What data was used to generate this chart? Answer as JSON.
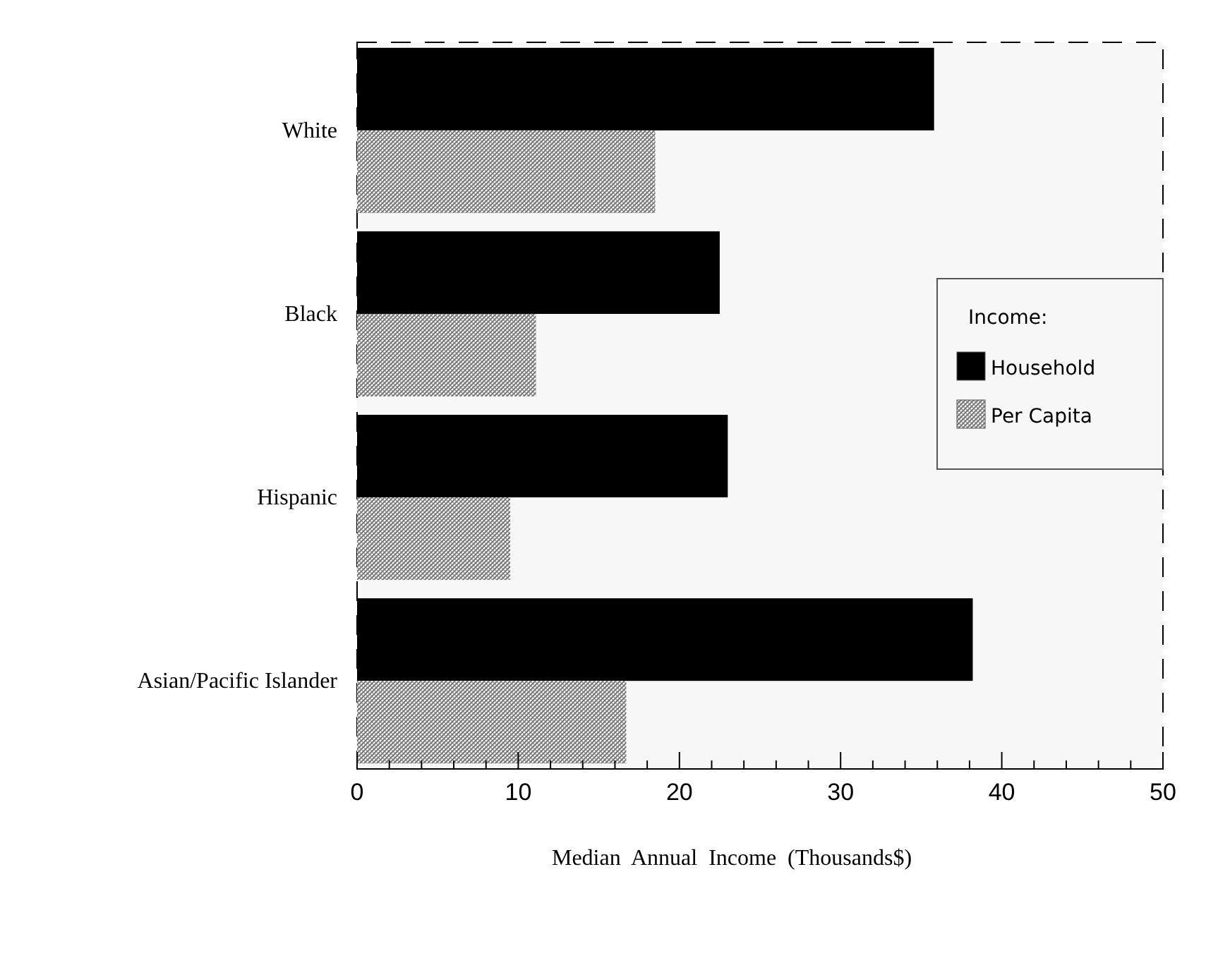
{
  "chart_data": {
    "type": "bar",
    "orientation": "horizontal",
    "xlabel": "Median  Annual  Income  (Thousands$)",
    "legend_title": "Income:",
    "legend": "right",
    "categories": [
      "White",
      "Black",
      "Hispanic",
      "Asian/Pacific  Islander"
    ],
    "series": [
      {
        "name": "Household",
        "color": "#000000",
        "values": [
          35.8,
          22.5,
          23.0,
          38.2
        ]
      },
      {
        "name": "Per Capita",
        "color": "#777777",
        "values": [
          18.5,
          11.1,
          9.5,
          16.7
        ]
      }
    ],
    "xlim": [
      0,
      50
    ],
    "xticks": [
      0,
      {
        "value": 2,
        "label": null
      },
      {
        "value": 4,
        "label": null
      },
      {
        "value": 6,
        "label": null
      },
      {
        "value": 8,
        "label": null
      },
      10,
      {
        "value": 12,
        "label": null
      },
      {
        "value": 14,
        "label": null
      },
      {
        "value": 16,
        "label": null
      },
      {
        "value": 18,
        "label": null
      },
      20,
      {
        "value": 22,
        "label": null
      },
      {
        "value": 24,
        "label": null
      },
      {
        "value": 26,
        "label": null
      },
      {
        "value": 28,
        "label": null
      },
      30,
      {
        "value": 32,
        "label": null
      },
      {
        "value": 34,
        "label": null
      },
      {
        "value": 36,
        "label": null
      },
      {
        "value": 38,
        "label": null
      },
      40,
      {
        "value": 42,
        "label": null
      },
      {
        "value": 44,
        "label": null
      },
      {
        "value": 46,
        "label": null
      },
      {
        "value": 48,
        "label": null
      },
      50
    ],
    "grid": false
  }
}
